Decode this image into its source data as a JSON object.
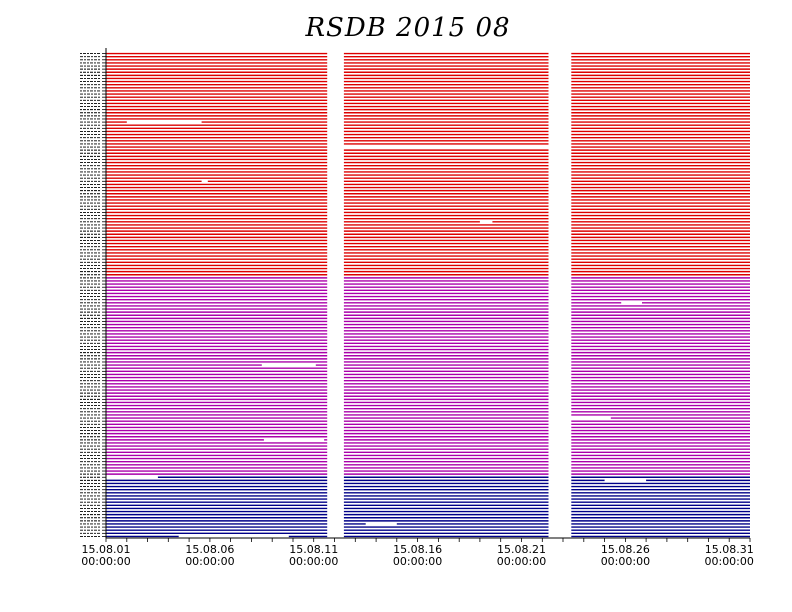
{
  "chart_data": {
    "type": "timeline",
    "title": "RSDB  2015  08",
    "x_tick_labels": [
      {
        "date": "15.08.01",
        "time": "00:00:00",
        "day": 0
      },
      {
        "date": "15.08.06",
        "time": "00:00:00",
        "day": 5
      },
      {
        "date": "15.08.11",
        "time": "00:00:00",
        "day": 10
      },
      {
        "date": "15.08.16",
        "time": "00:00:00",
        "day": 15
      },
      {
        "date": "15.08.21",
        "time": "00:00:00",
        "day": 20
      },
      {
        "date": "15.08.26",
        "time": "00:00:00",
        "day": 25
      },
      {
        "date": "15.08.31",
        "time": "00:00:00",
        "day": 30
      }
    ],
    "xlim_days": [
      0,
      31
    ],
    "groups": [
      {
        "color": "#dd0000",
        "row_count": 72
      },
      {
        "color": "#aa00aa",
        "row_count": 64
      },
      {
        "color": "#000088",
        "row_count": 20
      }
    ],
    "common_gaps_days": [
      [
        10.65,
        11.45
      ],
      [
        21.3,
        22.4
      ]
    ],
    "group_gaps_days": [
      {
        "group": 0,
        "gaps": [
          [
            10.65,
            11.45
          ]
        ]
      }
    ],
    "row_gaps_days": [
      {
        "row": 22,
        "gaps": [
          [
            1.0,
            4.6
          ]
        ]
      },
      {
        "row": 30,
        "gaps": [
          [
            11.2,
            21.5
          ]
        ]
      },
      {
        "row": 41,
        "gaps": [
          [
            4.6,
            4.9
          ]
        ]
      },
      {
        "row": 54,
        "gaps": [
          [
            18.0,
            18.6
          ]
        ]
      },
      {
        "row": 80,
        "gaps": [
          [
            24.8,
            25.8
          ]
        ]
      },
      {
        "row": 100,
        "gaps": [
          [
            7.5,
            10.1
          ]
        ]
      },
      {
        "row": 117,
        "gaps": [
          [
            22.4,
            24.3
          ]
        ]
      },
      {
        "row": 124,
        "gaps": [
          [
            7.6,
            10.5
          ]
        ]
      },
      {
        "row": 136,
        "gaps": [
          [
            0.0,
            2.5
          ]
        ]
      },
      {
        "row": 137,
        "gaps": [
          [
            24.0,
            26.0
          ]
        ]
      },
      {
        "row": 151,
        "gaps": [
          [
            12.5,
            14.0
          ]
        ]
      },
      {
        "row": 155,
        "gaps": [
          [
            3.5,
            8.8
          ]
        ]
      }
    ],
    "axes_color": "#000000",
    "grid": false
  }
}
